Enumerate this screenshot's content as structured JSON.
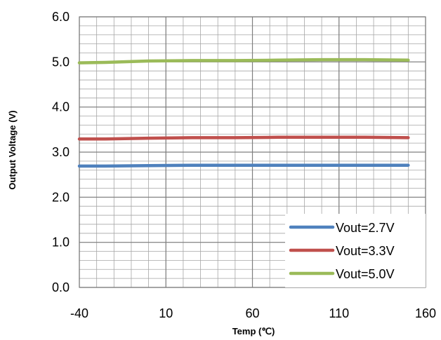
{
  "chart_data": {
    "type": "line",
    "xlabel": "Temp (℃)",
    "ylabel": "Output Voltage (V)",
    "xlim": [
      -40,
      160
    ],
    "ylim": [
      0,
      6
    ],
    "x_major_ticks": [
      -40,
      10,
      60,
      110,
      160
    ],
    "x_tick_labels": [
      "-40",
      "10",
      "60",
      "110",
      "160"
    ],
    "y_major_ticks": [
      0,
      1,
      2,
      3,
      4,
      5,
      6
    ],
    "y_tick_labels": [
      "0.0",
      "1.0",
      "2.0",
      "3.0",
      "4.0",
      "5.0",
      "6.0"
    ],
    "x_minor_step": 10,
    "y_minor_step": 0.2,
    "grid": true,
    "legend_position": "bottom-right",
    "x": [
      -40,
      -25,
      0,
      25,
      50,
      75,
      100,
      125,
      150
    ],
    "series": [
      {
        "name": "Vout=2.7V",
        "color": "#4F81BD",
        "values": [
          2.69,
          2.69,
          2.7,
          2.71,
          2.71,
          2.71,
          2.71,
          2.71,
          2.71
        ]
      },
      {
        "name": "Vout=3.3V",
        "color": "#C0504D",
        "values": [
          3.29,
          3.29,
          3.31,
          3.32,
          3.32,
          3.33,
          3.33,
          3.33,
          3.32
        ]
      },
      {
        "name": "Vout=5.0V",
        "color": "#9BBB59",
        "values": [
          4.98,
          4.99,
          5.02,
          5.03,
          5.03,
          5.04,
          5.05,
          5.05,
          5.04
        ]
      }
    ]
  }
}
